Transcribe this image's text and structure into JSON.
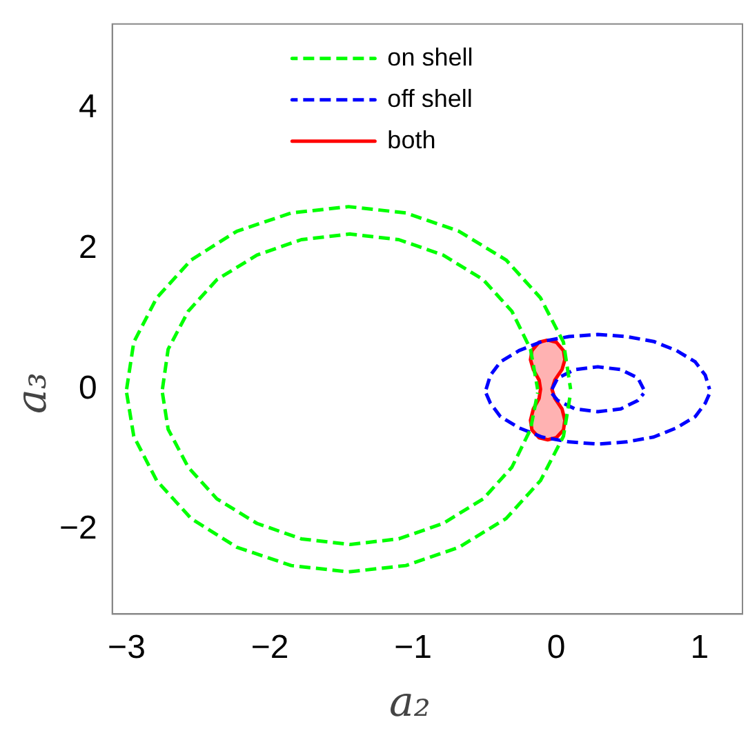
{
  "chart_data": {
    "type": "line",
    "xlabel": "a₂",
    "ylabel": "a₃",
    "xlim": [
      -3.1,
      1.3
    ],
    "ylim": [
      -3.2,
      5.2
    ],
    "xticks": [
      -3,
      -2,
      -1,
      0,
      1
    ],
    "yticks": [
      -2,
      0,
      2,
      4
    ],
    "grid": false,
    "legend": "top",
    "marker": "none",
    "series": [
      {
        "name": "on shell",
        "color": "#00ff00",
        "line_style": "dashed",
        "x": [
          -3.0,
          -2.95,
          -2.79,
          -2.55,
          -2.23,
          -1.85,
          -1.45,
          -1.05,
          -0.68,
          -0.35,
          -0.11,
          0.05,
          0.1
        ],
        "values": [
          0,
          0.67,
          1.3,
          1.84,
          2.25,
          2.51,
          2.6,
          2.51,
          2.25,
          1.84,
          1.3,
          0.67,
          0
        ]
      },
      {
        "color": "#00ff00",
        "line_style": "dashed",
        "x": [
          -3.0,
          -2.95,
          -2.79,
          -2.55,
          -2.23,
          -1.85,
          -1.45,
          -1.05,
          -0.68,
          -0.35,
          -0.11,
          0.05,
          0.1
        ],
        "values": [
          -0.05,
          -0.67,
          -1.3,
          -1.84,
          -2.25,
          -2.51,
          -2.6,
          -2.51,
          -2.25,
          -1.84,
          -1.3,
          -0.67,
          -0.05
        ]
      },
      {
        "color": "#00ff00",
        "line_style": "dashed",
        "x": [
          -2.75,
          -2.71,
          -2.57,
          -2.37,
          -2.09,
          -1.78,
          -1.44,
          -1.1,
          -0.79,
          -0.51,
          -0.31,
          -0.18,
          -0.13
        ],
        "values": [
          0,
          0.57,
          1.11,
          1.56,
          1.91,
          2.13,
          2.21,
          2.13,
          1.91,
          1.56,
          1.11,
          0.57,
          0
        ]
      },
      {
        "color": "#00ff00",
        "line_style": "dashed",
        "x": [
          -2.75,
          -2.71,
          -2.57,
          -2.37,
          -2.09,
          -1.78,
          -1.44,
          -1.1,
          -0.79,
          -0.51,
          -0.31,
          -0.18,
          -0.13
        ],
        "values": [
          -0.05,
          -0.57,
          -1.11,
          -1.56,
          -1.91,
          -2.13,
          -2.21,
          -2.13,
          -1.91,
          -1.56,
          -1.11,
          -0.57,
          -0.05
        ]
      },
      {
        "name": "off shell",
        "color": "#0000ff",
        "line_style": "dashed",
        "x": [
          -0.49,
          -0.46,
          -0.39,
          -0.26,
          -0.1,
          0.09,
          0.29,
          0.49,
          0.68,
          0.84,
          0.97,
          1.04,
          1.07
        ],
        "values": [
          0,
          0.2,
          0.39,
          0.55,
          0.68,
          0.75,
          0.78,
          0.75,
          0.68,
          0.55,
          0.39,
          0.2,
          0
        ]
      },
      {
        "color": "#0000ff",
        "line_style": "dashed",
        "x": [
          -0.49,
          -0.46,
          -0.39,
          -0.26,
          -0.1,
          0.09,
          0.29,
          0.49,
          0.68,
          0.84,
          0.97,
          1.04,
          1.07
        ],
        "values": [
          -0.06,
          -0.2,
          -0.39,
          -0.55,
          -0.68,
          -0.75,
          -0.78,
          -0.75,
          -0.68,
          -0.55,
          -0.39,
          -0.2,
          -0.06
        ]
      },
      {
        "color": "#0000ff",
        "line_style": "dashed",
        "x": [
          -0.03,
          0.01,
          0.13,
          0.29,
          0.45,
          0.57,
          0.61
        ],
        "values": [
          0,
          0.16,
          0.28,
          0.32,
          0.28,
          0.16,
          0
        ]
      },
      {
        "color": "#0000ff",
        "line_style": "dashed",
        "x": [
          -0.03,
          0.01,
          0.13,
          0.29,
          0.45,
          0.57,
          0.61
        ],
        "values": [
          -0.06,
          -0.16,
          -0.28,
          -0.32,
          -0.28,
          -0.16,
          -0.06
        ]
      },
      {
        "name": "both",
        "type": "area",
        "color": "#ff0000",
        "line_style": "solid",
        "x": [
          -0.06,
          0.0,
          0.05,
          0.06,
          0.04,
          -0.01,
          -0.03,
          -0.01,
          0.04,
          0.06,
          0.05,
          0.0,
          -0.06,
          -0.12,
          -0.17,
          -0.18,
          -0.16,
          -0.12,
          -0.11,
          -0.12,
          -0.16,
          -0.18,
          -0.17,
          -0.12,
          -0.06
        ],
        "values": [
          0.7,
          0.67,
          0.55,
          0.42,
          0.28,
          0.13,
          0,
          -0.13,
          -0.28,
          -0.44,
          -0.58,
          -0.69,
          -0.72,
          -0.69,
          -0.58,
          -0.44,
          -0.28,
          -0.13,
          0,
          0.13,
          0.28,
          0.42,
          0.55,
          0.67,
          0.7
        ]
      }
    ]
  }
}
